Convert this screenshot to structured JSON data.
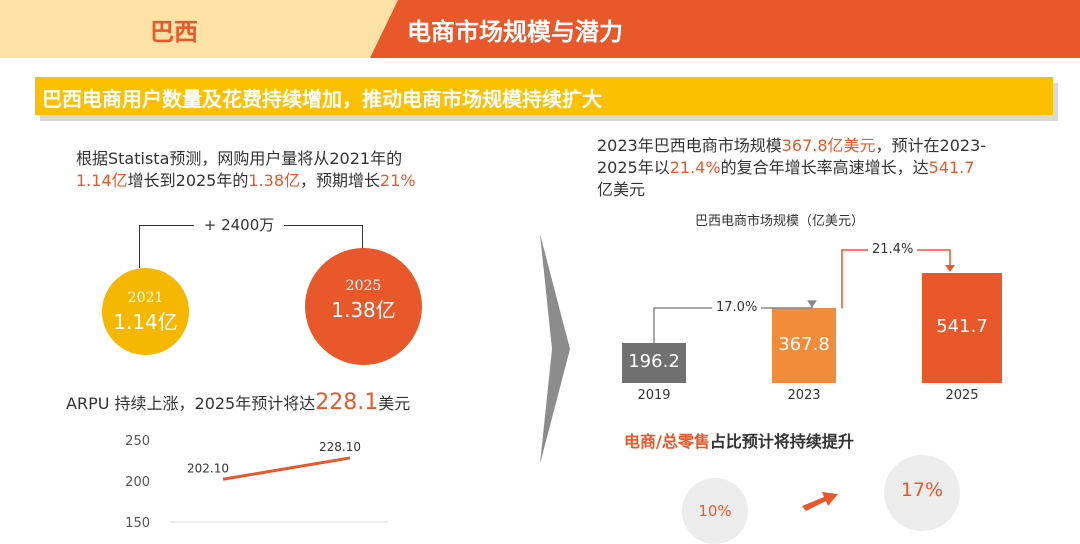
{
  "header": {
    "country": "巴西",
    "title": "电商市场规模与潜力"
  },
  "banner": {
    "text": "巴西电商用户数量及花费持续增加，推动电商市场规模持续扩大"
  },
  "users": {
    "line1": "根据Statista预测，网购用户量将从2021年的",
    "line2_a": "1.14亿",
    "line2_b": "增长到2025年的",
    "line2_c": "1.38亿",
    "line2_d": "，预期增长",
    "line2_e": "21%",
    "increase_label": "+ 2400万",
    "circle_2021_year": "2021",
    "circle_2021_value": "1.14亿",
    "circle_2025_year": "2025",
    "circle_2025_value": "1.38亿"
  },
  "arpu": {
    "title_a": "ARPU 持续上涨，2025年预计将达",
    "title_value": "228.1",
    "title_b": "美元"
  },
  "market": {
    "line1_a": "2023年巴西电商市场规模",
    "line1_b": "367.8亿美元",
    "line1_c": "，预计在2023-",
    "line2_a": "2025年以",
    "line2_b": "21.4%",
    "line2_c": "的复合年增长率高速增长，达",
    "line2_d": "541.7",
    "line3_a": "亿美元"
  },
  "retail_share": {
    "title": "电商/总零售占比预计将持续提升",
    "from": "10%",
    "to": "17%"
  },
  "colors": {
    "orange": "#e9582b",
    "yellow": "#fcc000",
    "gray": "#707070",
    "light_orange": "#f28b3a"
  },
  "chart_data": [
    {
      "type": "line",
      "title": "",
      "x": [
        "",
        ""
      ],
      "series": [
        {
          "values": [
            202.1,
            228.1
          ],
          "labels": [
            "202.10",
            "228.10"
          ]
        }
      ],
      "y_ticks": [
        "250",
        "200",
        "150"
      ],
      "ylim": [
        150,
        250
      ]
    },
    {
      "type": "bar",
      "title": "巴西电商市场规模（亿美元）",
      "categories": [
        "2019",
        "2023",
        "2025"
      ],
      "values": [
        196.2,
        367.8,
        541.7
      ],
      "value_labels": [
        "196.2",
        "367.8",
        "541.7"
      ],
      "growth_labels": [
        "17.0%",
        "21.4%"
      ]
    }
  ]
}
